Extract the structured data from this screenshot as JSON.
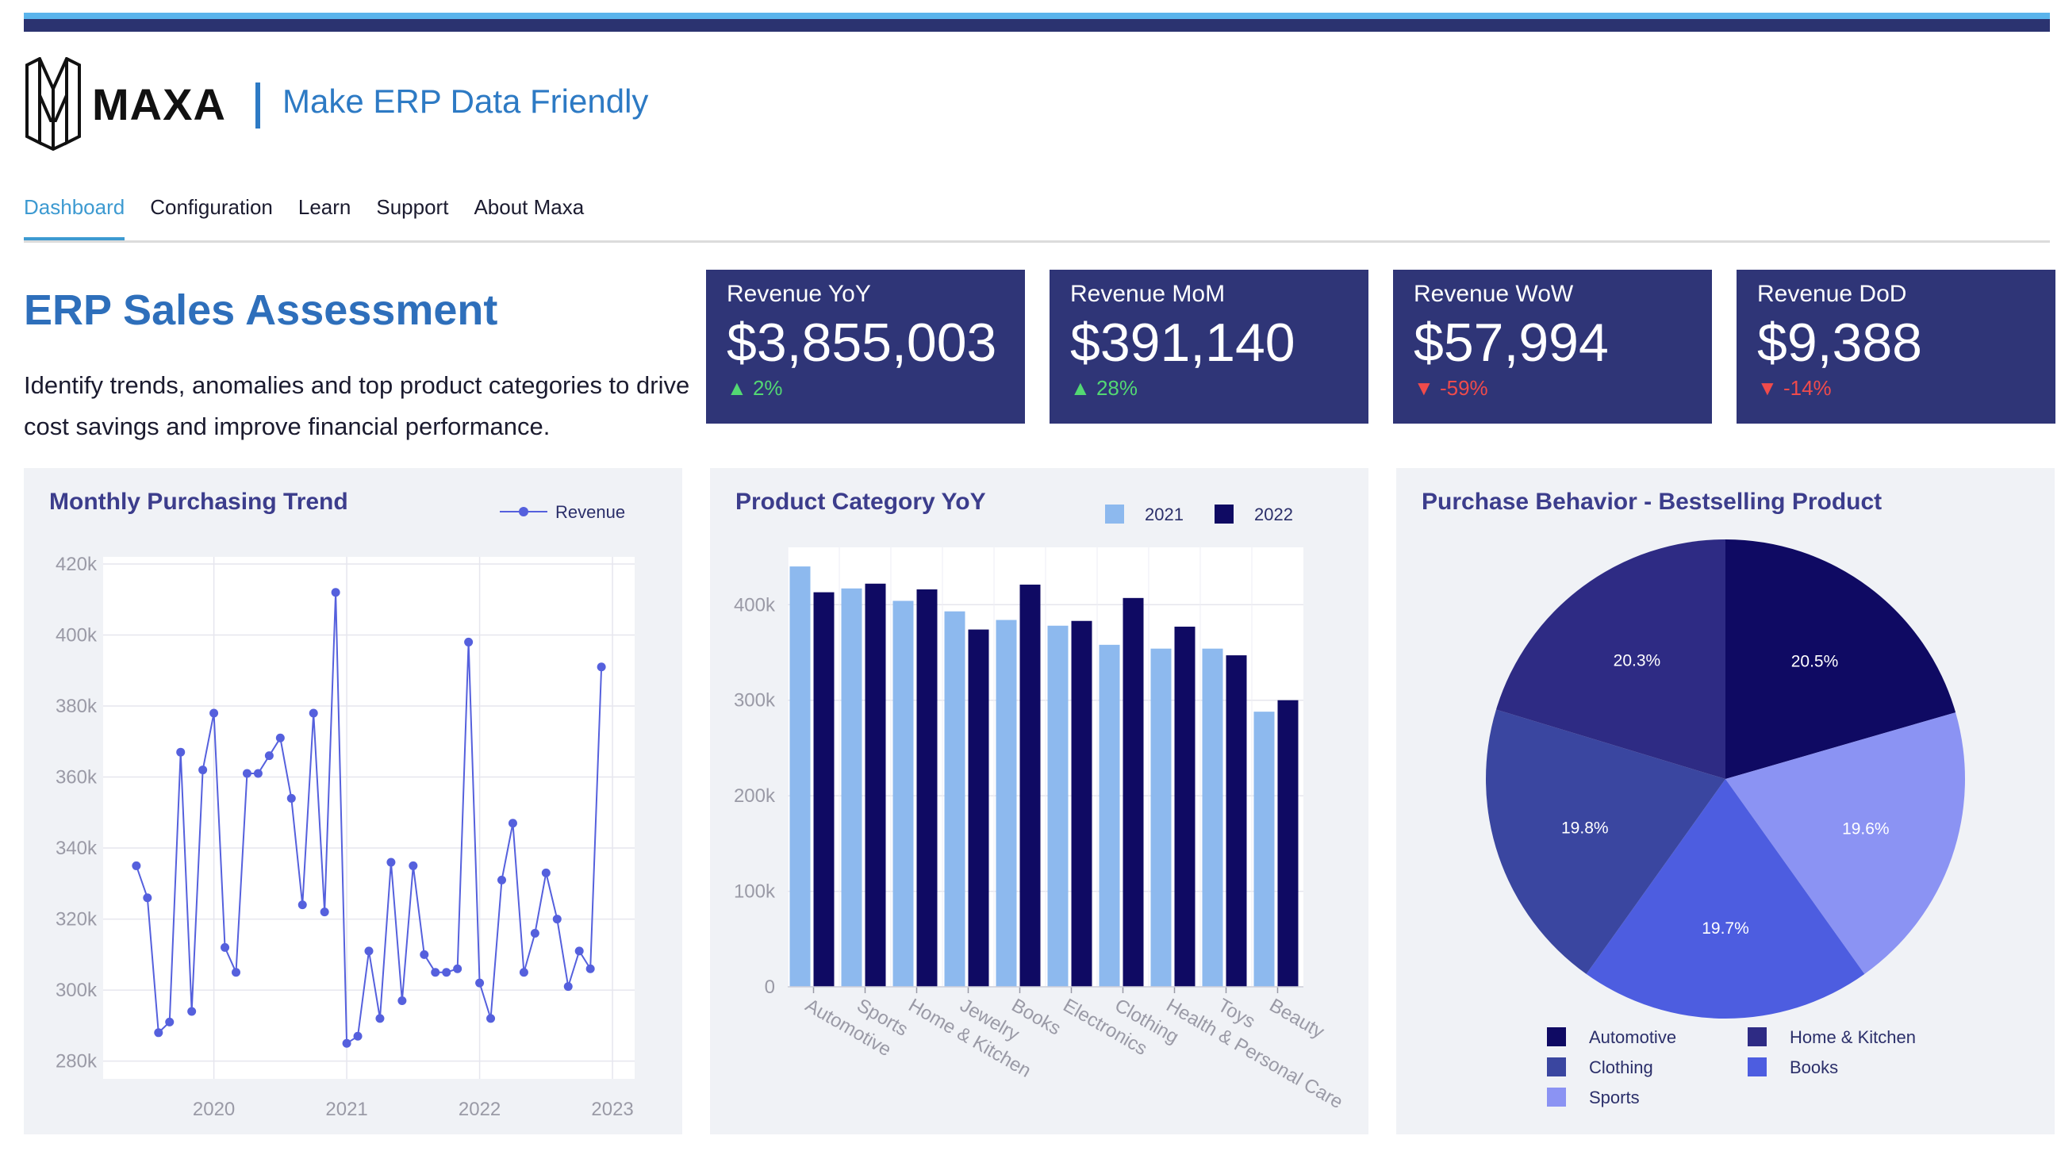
{
  "app": {
    "brand": "MAXA",
    "tagline": "Make ERP Data Friendly"
  },
  "nav": {
    "tabs": [
      {
        "label": "Dashboard",
        "active": true
      },
      {
        "label": "Configuration",
        "active": false
      },
      {
        "label": "Learn",
        "active": false
      },
      {
        "label": "Support",
        "active": false
      },
      {
        "label": "About Maxa",
        "active": false
      }
    ]
  },
  "header": {
    "title": "ERP Sales Assessment",
    "description": "Identify trends, anomalies and top product categories to drive cost savings and improve financial performance."
  },
  "kpis": [
    {
      "label": "Revenue YoY",
      "value": "$3,855,003",
      "delta": "2%",
      "direction": "up"
    },
    {
      "label": "Revenue MoM",
      "value": "$391,140",
      "delta": "28%",
      "direction": "up"
    },
    {
      "label": "Revenue WoW",
      "value": "$57,994",
      "delta": "-59%",
      "direction": "down"
    },
    {
      "label": "Revenue DoD",
      "value": "$9,388",
      "delta": "-14%",
      "direction": "down"
    }
  ],
  "colors": {
    "brand_blue": "#2e6fbb",
    "kpi_bg": "#2f3577",
    "up": "#53d873",
    "down": "#f04b4b",
    "line": "#5560dd",
    "bar_2021": "#8db9ee",
    "bar_2022": "#0f0a63"
  },
  "chart_data": [
    {
      "type": "line",
      "title": "Monthly Purchasing Trend",
      "series": [
        {
          "name": "Revenue",
          "x": [
            "2019-06",
            "2019-07",
            "2019-08",
            "2019-09",
            "2019-10",
            "2019-11",
            "2019-12",
            "2020-01",
            "2020-02",
            "2020-03",
            "2020-04",
            "2020-05",
            "2020-06",
            "2020-07",
            "2020-08",
            "2020-09",
            "2020-10",
            "2020-11",
            "2020-12",
            "2021-01",
            "2021-02",
            "2021-03",
            "2021-04",
            "2021-05",
            "2021-06",
            "2021-07",
            "2021-08",
            "2021-09",
            "2021-10",
            "2021-11",
            "2021-12",
            "2022-01",
            "2022-02",
            "2022-03",
            "2022-04",
            "2022-05",
            "2022-06",
            "2022-07",
            "2022-08",
            "2022-09",
            "2022-10",
            "2022-11",
            "2022-12"
          ],
          "values": [
            335,
            326,
            288,
            291,
            367,
            294,
            362,
            378,
            312,
            305,
            361,
            361,
            366,
            371,
            354,
            324,
            378,
            322,
            412,
            285,
            287,
            311,
            292,
            336,
            297,
            335,
            310,
            305,
            305,
            306,
            398,
            302,
            292,
            331,
            347,
            305,
            316,
            333,
            320,
            301,
            311,
            306,
            391
          ],
          "unit": "k"
        }
      ],
      "x_ticks": [
        "2020",
        "2021",
        "2022",
        "2023"
      ],
      "y_ticks": [
        "280k",
        "300k",
        "320k",
        "340k",
        "360k",
        "380k",
        "400k",
        "420k"
      ],
      "ylim": [
        275,
        422
      ],
      "grid": true,
      "legend": "top-right"
    },
    {
      "type": "bar",
      "title": "Product Category YoY",
      "categories": [
        "Automotive",
        "Sports",
        "Home & Kitchen",
        "Jewelry",
        "Books",
        "Electronics",
        "Clothing",
        "Health & Personal Care",
        "Toys",
        "Beauty"
      ],
      "series": [
        {
          "name": "2021",
          "values": [
            440000,
            417000,
            404000,
            393000,
            384000,
            378000,
            358000,
            354000,
            354000,
            288000
          ]
        },
        {
          "name": "2022",
          "values": [
            413000,
            422000,
            416000,
            374000,
            421000,
            383000,
            407000,
            377000,
            347000,
            300000
          ]
        }
      ],
      "y_ticks": [
        "0",
        "100k",
        "200k",
        "300k",
        "400k"
      ],
      "ylim": [
        0,
        460000
      ],
      "grid": true,
      "legend": "top-right"
    },
    {
      "type": "pie",
      "title": "Purchase Behavior - Bestselling Product",
      "slices": [
        {
          "label": "Automotive",
          "value": 20.5,
          "text": "20.5%",
          "color": "#0f0a63"
        },
        {
          "label": "Sports",
          "value": 19.6,
          "text": "19.6%",
          "color": "#8b93f3"
        },
        {
          "label": "Books",
          "value": 19.7,
          "text": "19.7%",
          "color": "#4d5de0"
        },
        {
          "label": "Clothing",
          "value": 19.8,
          "text": "19.8%",
          "color": "#3a46a0"
        },
        {
          "label": "Home & Kitchen",
          "value": 20.3,
          "text": "20.3%",
          "color": "#2e2b84"
        }
      ],
      "legend_order": [
        "Automotive",
        "Home & Kitchen",
        "Clothing",
        "Books",
        "Sports"
      ],
      "legend": "bottom"
    }
  ]
}
